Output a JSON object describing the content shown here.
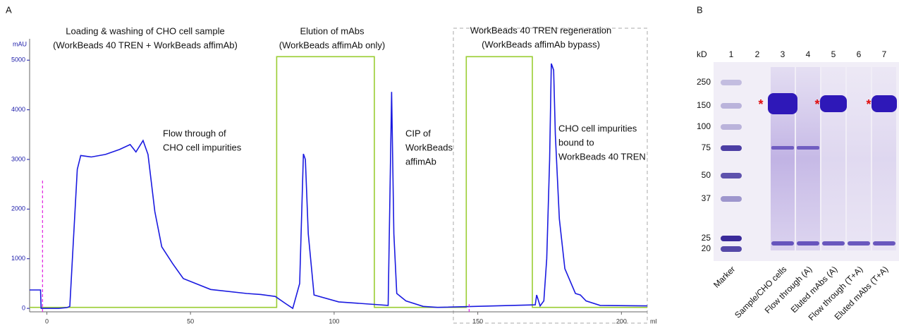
{
  "panel_a": "A",
  "panel_b": "B",
  "chart_data": {
    "type": "line",
    "x_label": "ml",
    "y_label": "mAU",
    "xlim": [
      -6,
      209
    ],
    "ylim": [
      -70,
      5430
    ],
    "xticks": [
      0,
      50,
      100,
      150,
      200
    ],
    "yticks": [
      0,
      1000,
      2000,
      3000,
      4000,
      5000
    ],
    "series": [
      {
        "color": "#1a1ae0",
        "x": [
          -6,
          -2.2,
          -2,
          4.2,
          7,
          8,
          10.6,
          11.8,
          15.5,
          20.4,
          25.3,
          29,
          31,
          33.5,
          35.2,
          37.6,
          40,
          43.8,
          47.5,
          57,
          69.6,
          74.5,
          79.5,
          83,
          85.6,
          88,
          89.3,
          90,
          91,
          93,
          101.6,
          118.8,
          120,
          120.8,
          121.8,
          125,
          131,
          136,
          170,
          170.5,
          171.7,
          173,
          174,
          175,
          175.6,
          176.4,
          177,
          178.4,
          180.3,
          184,
          185.7,
          187.7,
          192.6,
          209
        ],
        "values": [
          370,
          370,
          0,
          0,
          15,
          40,
          2800,
          3080,
          3050,
          3100,
          3200,
          3300,
          3150,
          3380,
          3100,
          1950,
          1240,
          900,
          600,
          380,
          300,
          280,
          240,
          100,
          0,
          500,
          3110,
          3000,
          1500,
          270,
          130,
          60,
          4360,
          1500,
          300,
          150,
          40,
          20,
          70,
          270,
          50,
          150,
          1000,
          3000,
          4930,
          4800,
          3500,
          1800,
          800,
          300,
          270,
          150,
          60,
          50
        ]
      },
      {
        "color": "#9acd32",
        "x": [
          -6,
          80,
          80,
          114,
          114,
          146,
          146,
          169,
          169,
          209
        ],
        "values": [
          20,
          20,
          5070,
          5070,
          20,
          20,
          5070,
          5070,
          20,
          20
        ]
      }
    ],
    "markers": [
      {
        "x": -1.5,
        "y": 2600,
        "color": "#e020e0"
      },
      {
        "x": 147,
        "y": 100,
        "color": "#e020e0"
      }
    ],
    "annotations": [
      {
        "lines": [
          "Loading & washing of CHO cell sample",
          "(WorkBeads 40 TREN + WorkBeads affimAb)"
        ]
      },
      {
        "lines": [
          "Elution of mAbs",
          "(WorkBeads affimAb only)"
        ]
      },
      {
        "lines": [
          "WorkBeads 40  TREN regeneration",
          "(WorkBeads affimAb bypass)"
        ]
      },
      {
        "lines": [
          "Flow through of",
          "CHO cell impurities"
        ]
      },
      {
        "lines": [
          "CIP of",
          "WorkBeads",
          "affimAb"
        ]
      },
      {
        "lines": [
          "CHO cell impurities",
          "bound to",
          "WorkBeads 40 TREN"
        ]
      }
    ]
  },
  "gel": {
    "kd_title": "kD",
    "kd_labels": [
      "250",
      "150",
      "100",
      "75",
      "50",
      "37",
      "25",
      "20"
    ],
    "lane_numbers": [
      "1",
      "2",
      "3",
      "4",
      "5",
      "6",
      "7"
    ],
    "lane_labels": [
      "Marker",
      null,
      "Sample/CHO cells",
      "Flow through (A)",
      "Eluted mAbs (A)",
      "Flow through (T+A)",
      "Eluted mAbs (T+A)"
    ],
    "asterisk": "*"
  }
}
